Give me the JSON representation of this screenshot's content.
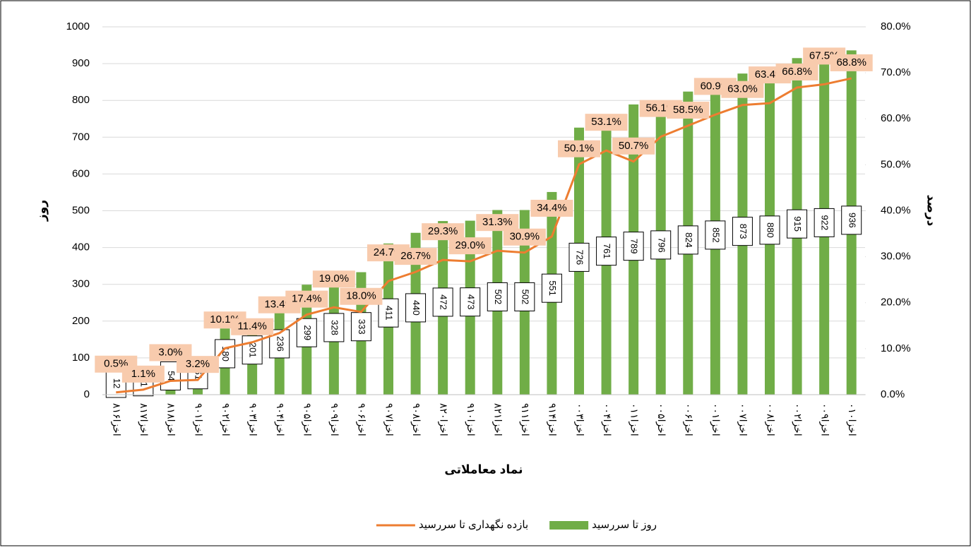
{
  "chart_data": {
    "type": "bar-line",
    "x_label": "نماد معاملاتی",
    "y_label": "روز",
    "y2_label": "درصد",
    "categories": [
      "اخزا۸۱۶",
      "اخزا۸۱۷",
      "اخزا۸۱۸",
      "اخزا۹۰۱",
      "اخزا۹۰۲",
      "اخزا۹۰۳",
      "اخزا۹۰۴",
      "اخزا۹۰۵",
      "اخزا۹۰۹",
      "اخزا۹۰۶",
      "اخزا۹۰۷",
      "اخزا۹۰۸",
      "اخزا۸۲۰",
      "اخزا۹۱۰",
      "اخزا۸۲۱",
      "اخزا۹۱۱",
      "اخزا۹۱۴",
      "اخزا۰۰۳",
      "اخزا۰۰۴",
      "اخزا۰۱۱",
      "اخزا۰۰۵",
      "اخزا۰۰۶",
      "اخزا۰۰۱",
      "اخزا۰۰۷",
      "اخزا۰۰۸",
      "اخزا۰۰۲",
      "اخزا۰۰۹",
      "اخزا۰۱۰"
    ],
    "series": [
      {
        "name": "روز تا سررسید",
        "type": "bar",
        "color": "#70ad47",
        "values": [
          12,
          21,
          54,
          61,
          180,
          201,
          236,
          299,
          328,
          333,
          411,
          440,
          472,
          473,
          502,
          502,
          551,
          726,
          761,
          789,
          796,
          824,
          852,
          873,
          880,
          915,
          922,
          936
        ]
      },
      {
        "name": "بازده نگهداری تا سررسید",
        "type": "line",
        "axis": "y2",
        "color": "#ed7d31",
        "values": [
          0.5,
          1.1,
          3.0,
          3.2,
          10.1,
          11.4,
          13.4,
          17.4,
          19.0,
          18.0,
          24.7,
          26.7,
          29.3,
          29.0,
          31.3,
          30.9,
          34.4,
          50.1,
          53.1,
          50.7,
          56.1,
          58.5,
          60.9,
          63.0,
          63.4,
          66.8,
          67.5,
          68.8
        ],
        "value_labels": [
          "0.5%",
          "1.1%",
          "3.0%",
          "3.2%",
          "10.1%",
          "11.4%",
          "13.4%",
          "17.4%",
          "19.0%",
          "18.0%",
          "24.7%",
          "26.7%",
          "29.3%",
          "29.0%",
          "31.3%",
          "30.9%",
          "34.4%",
          "50.1%",
          "53.1%",
          "50.7%",
          "56.1%",
          "58.5%",
          "60.9%",
          "63.0%",
          "63.4%",
          "66.8%",
          "67.5%",
          "68.8%"
        ]
      }
    ],
    "ylim": [
      0,
      1000
    ],
    "yticks": [
      0,
      100,
      200,
      300,
      400,
      500,
      600,
      700,
      800,
      900,
      1000
    ],
    "y2lim": [
      0,
      80
    ],
    "y2ticks": [
      {
        "value": 0,
        "label": "0.0%"
      },
      {
        "value": 10,
        "label": "10.0%"
      },
      {
        "value": 20,
        "label": "20.0%"
      },
      {
        "value": 30,
        "label": "30.0%"
      },
      {
        "value": 40,
        "label": "40.0%"
      },
      {
        "value": 50,
        "label": "50.0%"
      },
      {
        "value": 60,
        "label": "60.0%"
      },
      {
        "value": 70,
        "label": "70.0%"
      },
      {
        "value": 80,
        "label": "80.0%"
      }
    ],
    "legend": "bottom"
  }
}
